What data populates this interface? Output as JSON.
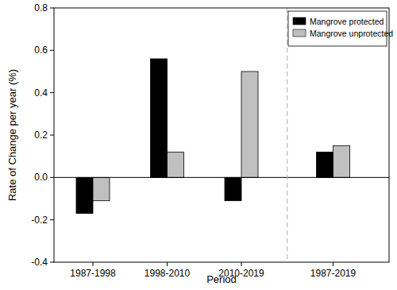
{
  "chart_data": {
    "type": "bar",
    "x_label": "Period",
    "y_label": "Rate of Change per year (%)",
    "categories": [
      "1987-1998",
      "1998-2010",
      "2010-2019",
      "1987-2019"
    ],
    "series": [
      {
        "name": "Mangrove protected",
        "color": "#000000",
        "values": [
          -0.17,
          0.56,
          -0.11,
          0.12
        ]
      },
      {
        "name": "Mangrove unprotected",
        "color": "#c0c0c0",
        "values": [
          -0.11,
          0.12,
          0.5,
          0.15
        ]
      }
    ],
    "ylim": [
      -0.4,
      0.8
    ],
    "yticks": [
      -0.4,
      -0.2,
      {
        "value": 0,
        "label": "0.0"
      },
      0.2,
      0.4,
      0.6,
      0.8
    ],
    "grid": false,
    "legend": "upper right"
  }
}
